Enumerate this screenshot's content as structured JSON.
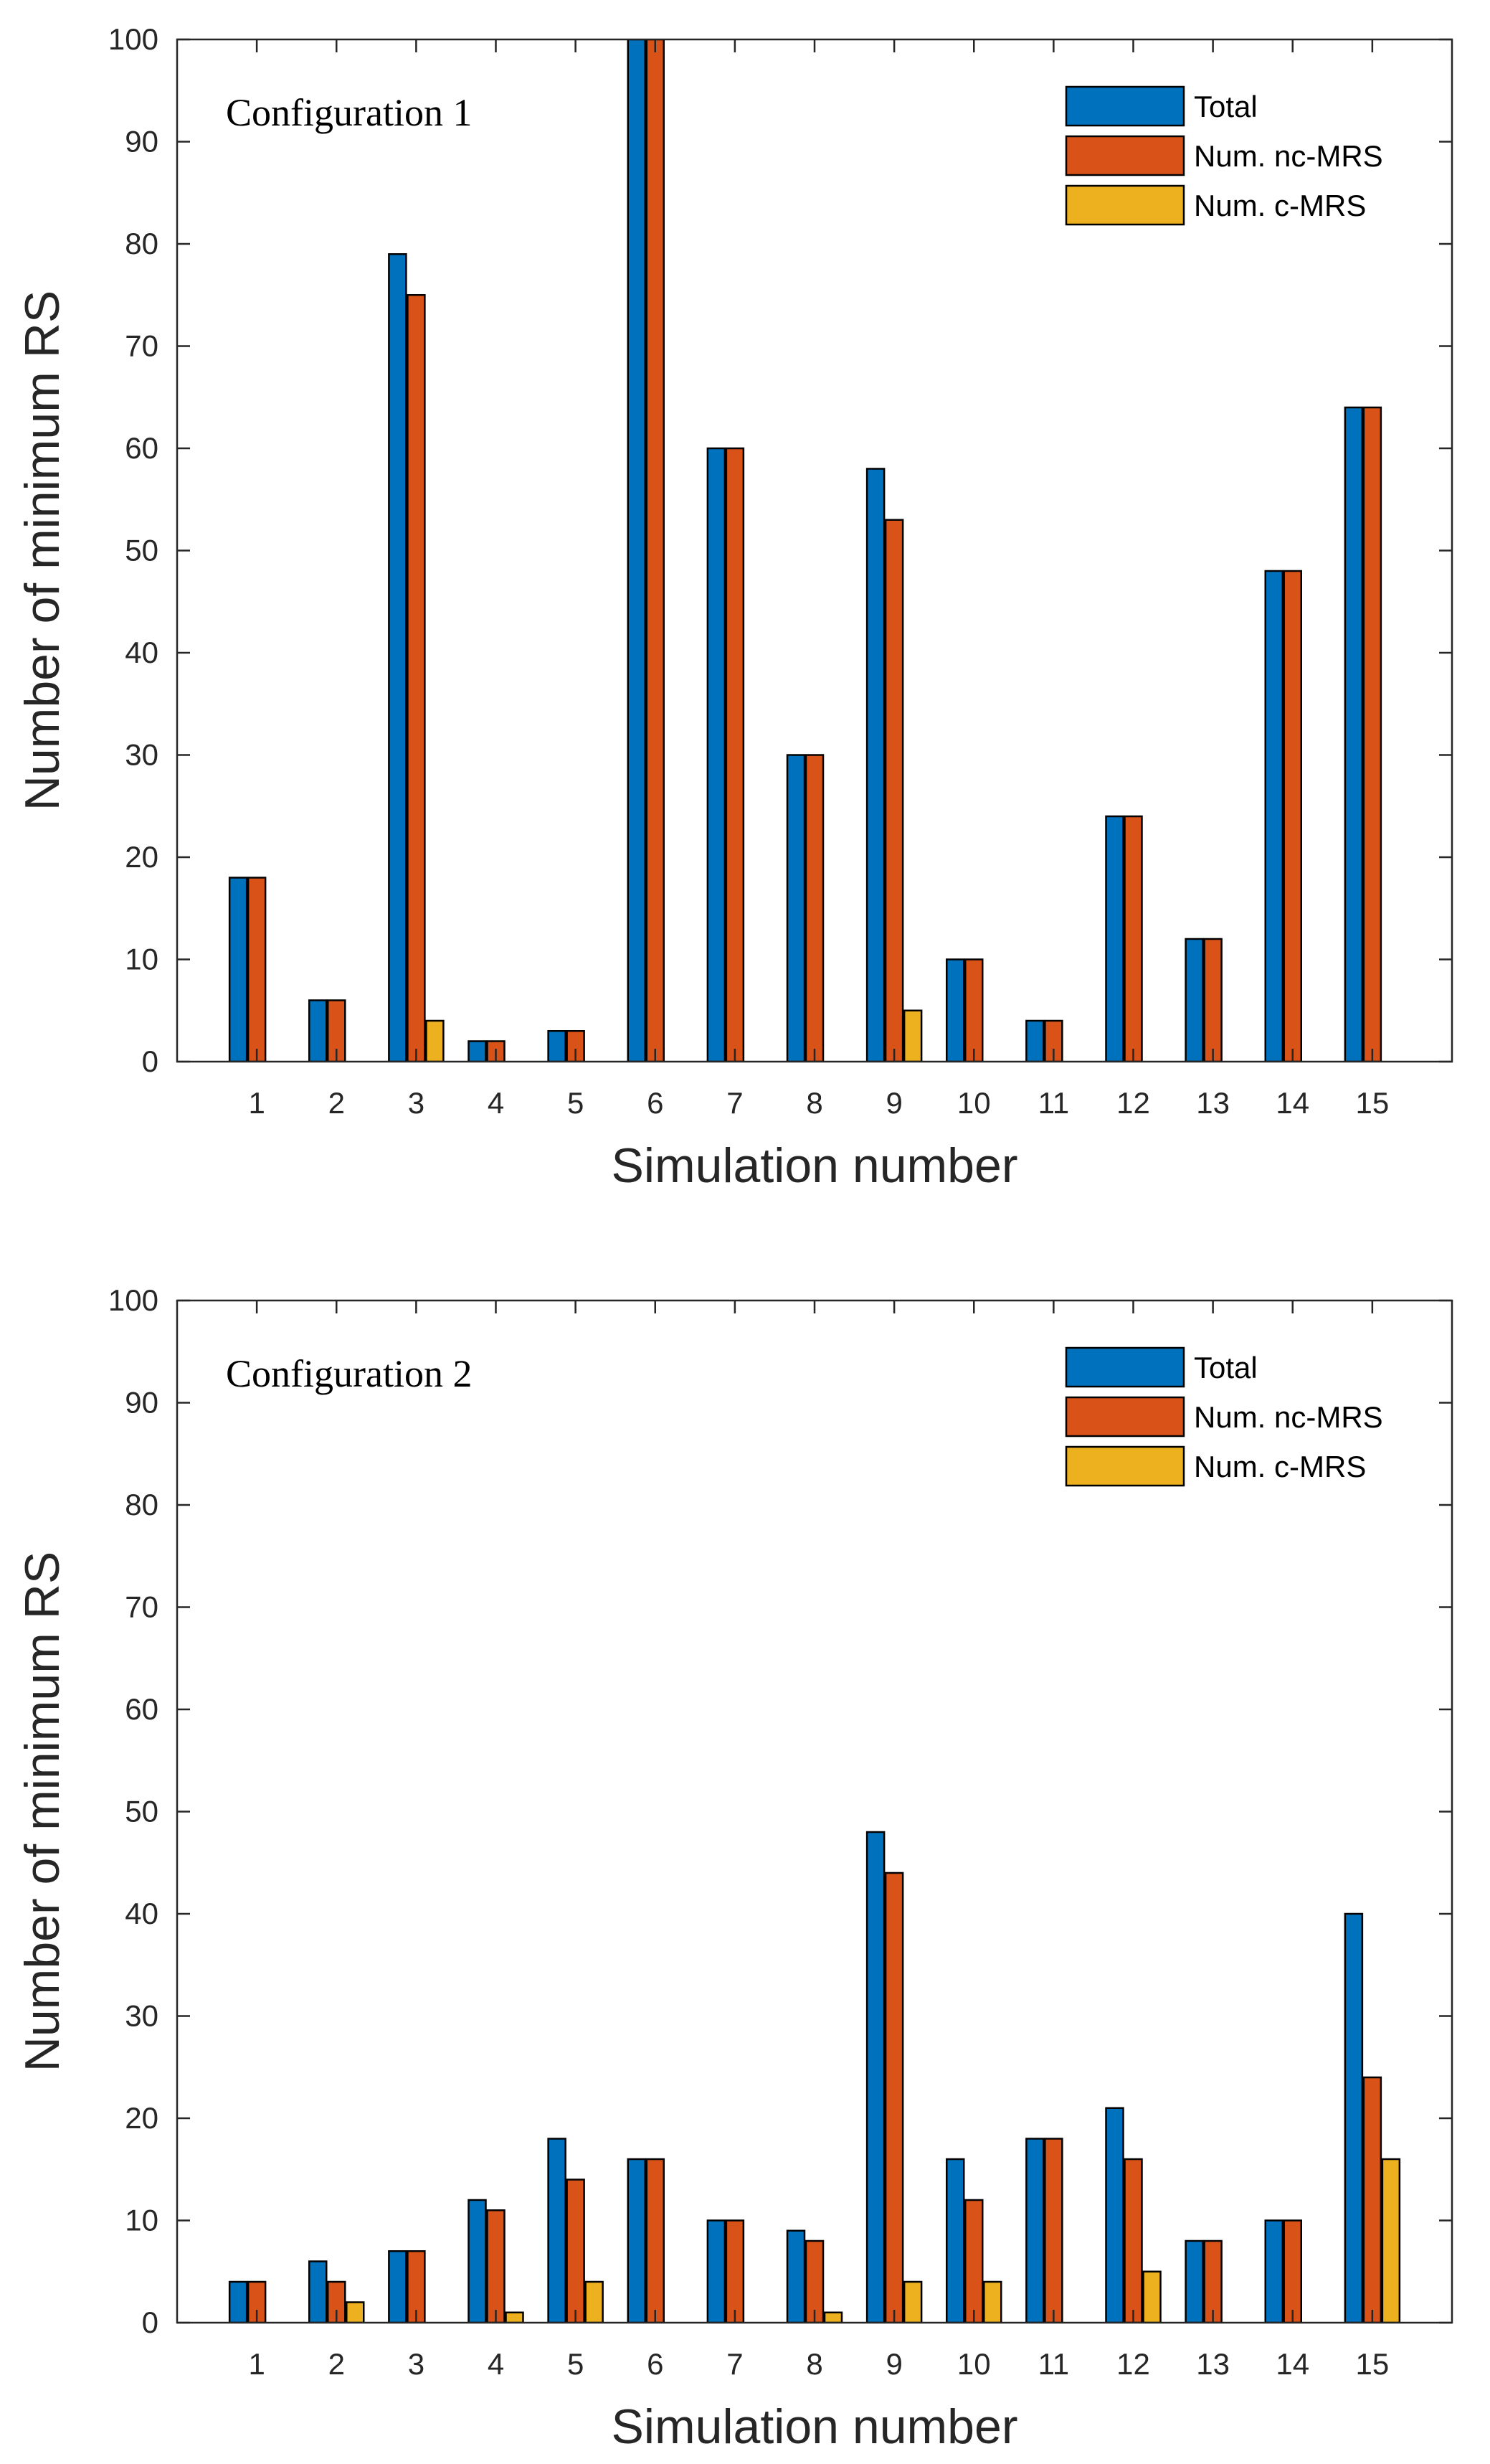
{
  "chart_data": [
    {
      "type": "bar",
      "title": "Configuration 1",
      "xlabel": "Simulation number",
      "ylabel": "Number of minimum RS",
      "categories": [
        "1",
        "2",
        "3",
        "4",
        "5",
        "6",
        "7",
        "8",
        "9",
        "10",
        "11",
        "12",
        "13",
        "14",
        "15"
      ],
      "ylim": [
        0,
        100
      ],
      "yticks": [
        0,
        10,
        20,
        30,
        40,
        50,
        60,
        70,
        80,
        90,
        100
      ],
      "legend_position": "top-right",
      "series": [
        {
          "name": "Total",
          "color": "#0072BD",
          "values": [
            18,
            6,
            79,
            2,
            3,
            100,
            60,
            30,
            58,
            10,
            4,
            24,
            12,
            48,
            64
          ]
        },
        {
          "name": "Num. nc-MRS",
          "color": "#D95319",
          "values": [
            18,
            6,
            75,
            2,
            3,
            100,
            60,
            30,
            53,
            10,
            4,
            24,
            12,
            48,
            64
          ]
        },
        {
          "name": "Num. c-MRS",
          "color": "#EDB120",
          "values": [
            0,
            0,
            4,
            0,
            0,
            0,
            0,
            0,
            5,
            0,
            0,
            0,
            0,
            0,
            0
          ]
        }
      ]
    },
    {
      "type": "bar",
      "title": "Configuration 2",
      "xlabel": "Simulation number",
      "ylabel": "Number of minimum RS",
      "categories": [
        "1",
        "2",
        "3",
        "4",
        "5",
        "6",
        "7",
        "8",
        "9",
        "10",
        "11",
        "12",
        "13",
        "14",
        "15"
      ],
      "ylim": [
        0,
        100
      ],
      "yticks": [
        0,
        10,
        20,
        30,
        40,
        50,
        60,
        70,
        80,
        90,
        100
      ],
      "legend_position": "top-right",
      "series": [
        {
          "name": "Total",
          "color": "#0072BD",
          "values": [
            4,
            6,
            7,
            12,
            18,
            16,
            10,
            9,
            48,
            16,
            18,
            21,
            8,
            10,
            40
          ]
        },
        {
          "name": "Num. nc-MRS",
          "color": "#D95319",
          "values": [
            4,
            4,
            7,
            11,
            14,
            16,
            10,
            8,
            44,
            12,
            18,
            16,
            8,
            10,
            24
          ]
        },
        {
          "name": "Num. c-MRS",
          "color": "#EDB120",
          "values": [
            0,
            2,
            0,
            1,
            4,
            0,
            0,
            1,
            4,
            4,
            0,
            5,
            0,
            0,
            16
          ]
        }
      ]
    }
  ]
}
